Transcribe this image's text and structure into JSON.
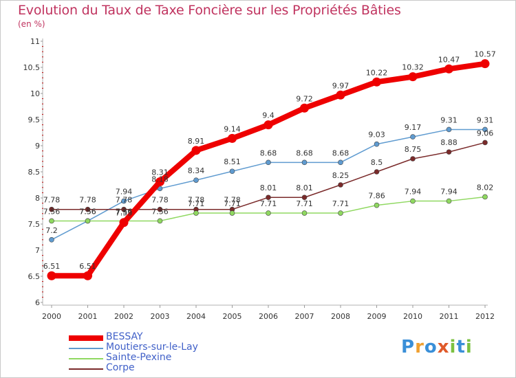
{
  "title": "Evolution du Taux de Taxe Foncière sur les Propriétés Bâties",
  "unit": "(en %)",
  "logo": {
    "chars": [
      "P",
      "r",
      "o",
      "x",
      "i",
      "t",
      "i"
    ],
    "colors": [
      "#3a8fd8",
      "#f0a030",
      "#3a8fd8",
      "#e05a2a",
      "#7cc142",
      "#3a8fd8",
      "#7cc142"
    ]
  },
  "chart_data": {
    "type": "line",
    "title": "Evolution du Taux de Taxe Foncière sur les Propriétés Bâties",
    "ylabel": "(en %)",
    "xlabel": "",
    "ylim": [
      6,
      11
    ],
    "yticks": [
      "6",
      "6.5",
      "7",
      "7.5",
      "8",
      "8.5",
      "9",
      "9.5",
      "10",
      "10.5",
      "11"
    ],
    "categories": [
      "2000",
      "2001",
      "2002",
      "2003",
      "2004",
      "2005",
      "2006",
      "2007",
      "2008",
      "2009",
      "2010",
      "2011",
      "2012"
    ],
    "series": [
      {
        "name": "BESSAY",
        "color": "#ee0000",
        "values": [
          6.51,
          6.51,
          7.53,
          8.31,
          8.91,
          9.14,
          9.4,
          9.72,
          9.97,
          10.22,
          10.32,
          10.47,
          10.57
        ],
        "labels": [
          "6.51",
          "6.51",
          "7.53",
          "8.31",
          "8.91",
          "9.14",
          "9.4",
          "9.72",
          "9.97",
          "10.22",
          "10.32",
          "10.47",
          "10.57"
        ]
      },
      {
        "name": "Moutiers-sur-le-Lay",
        "color": "#5f9bd0",
        "values": [
          7.2,
          7.56,
          7.94,
          8.18,
          8.34,
          8.51,
          8.68,
          8.68,
          8.68,
          9.03,
          9.17,
          9.31,
          9.31
        ],
        "labels": [
          "7.2",
          "7.56",
          "7.94",
          "8.18",
          "8.34",
          "8.51",
          "8.68",
          "8.68",
          "8.68",
          "9.03",
          "9.17",
          "9.31",
          "9.31"
        ]
      },
      {
        "name": "Sainte-Pexine",
        "color": "#8fd860",
        "values": [
          7.56,
          7.56,
          7.56,
          7.56,
          7.71,
          7.71,
          7.71,
          7.71,
          7.71,
          7.86,
          7.94,
          7.94,
          8.02
        ],
        "labels": [
          "7.56",
          "7.56",
          "7.56",
          "7.56",
          "7.71",
          "7.71",
          "7.71",
          "7.71",
          "7.71",
          "7.86",
          "7.94",
          "7.94",
          "8.02"
        ]
      },
      {
        "name": "Corpe",
        "color": "#7a2a2a",
        "values": [
          7.78,
          7.78,
          7.78,
          7.78,
          7.78,
          7.78,
          8.01,
          8.01,
          8.25,
          8.5,
          8.75,
          8.88,
          9.06
        ],
        "labels": [
          "7.78",
          "7.78",
          "7.78",
          "7.78",
          "7.78",
          "7.78",
          "8.01",
          "8.01",
          "8.25",
          "8.5",
          "8.75",
          "8.88",
          "9.06"
        ]
      }
    ],
    "legend": "bottom-left",
    "grid": false
  }
}
